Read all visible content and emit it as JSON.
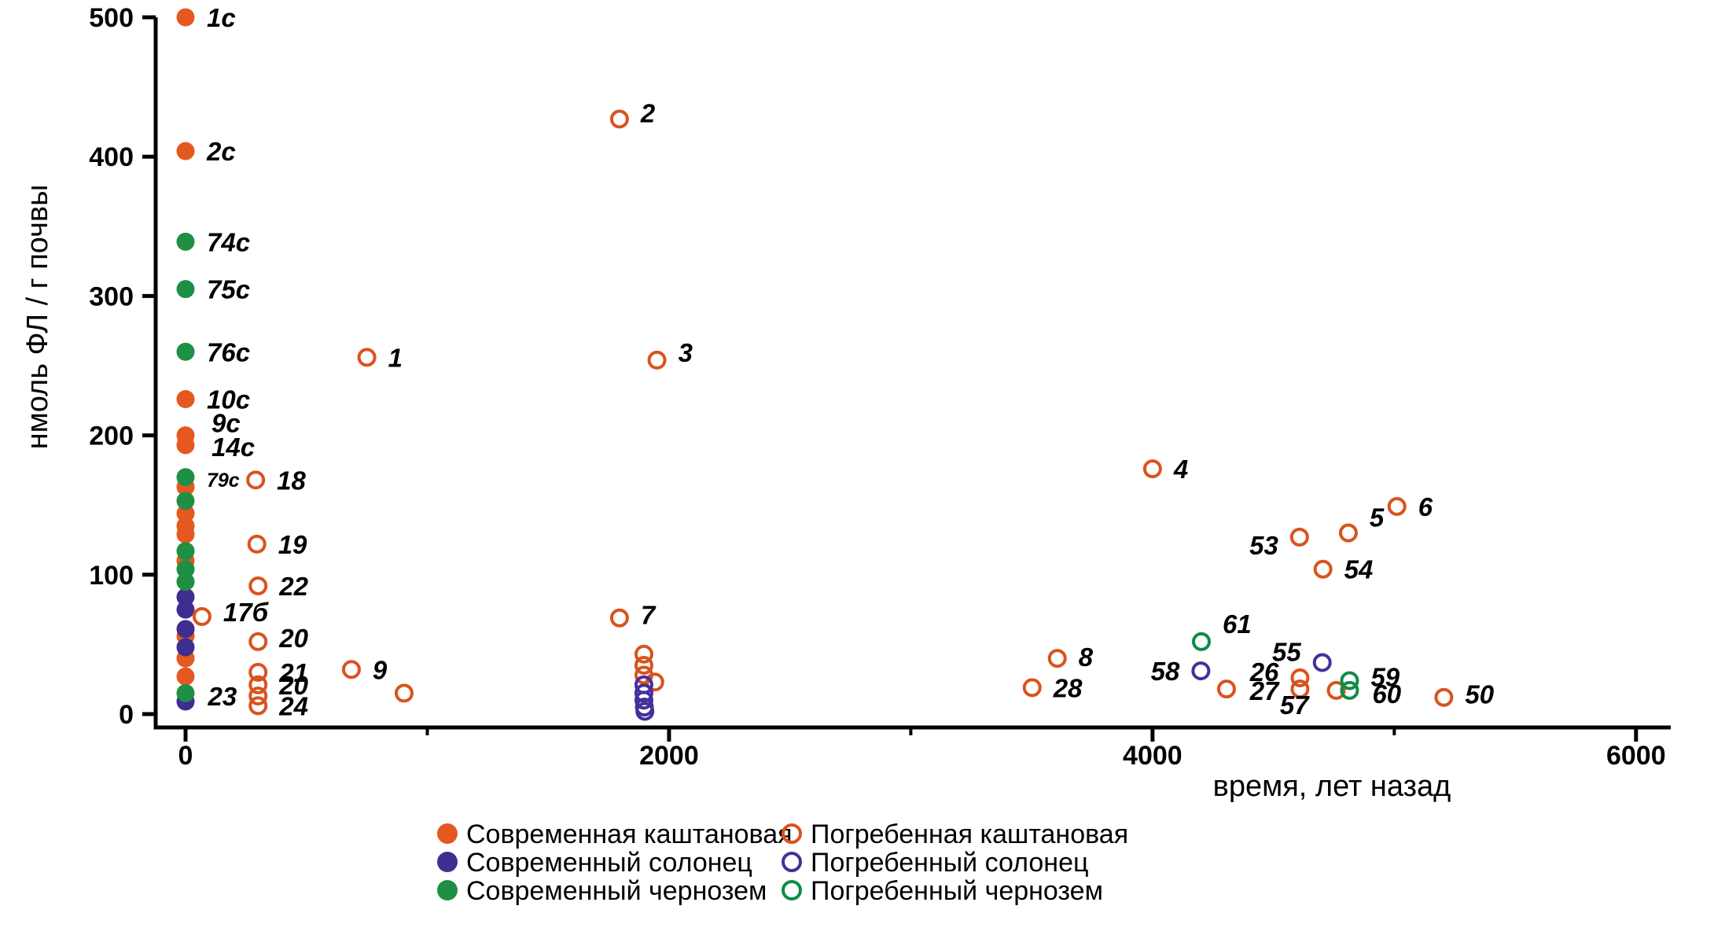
{
  "figure": {
    "background": "#ffffff"
  },
  "chart_data": {
    "type": "scatter",
    "title": "",
    "xlabel": "время, лет назад",
    "ylabel": "нмоль ФЛ / г почвы",
    "xlim": [
      -125,
      6145
    ],
    "ylim": [
      -10,
      500
    ],
    "grid": false,
    "legend_position": "bottom",
    "x_ticks": [
      0,
      2000,
      4000,
      6000
    ],
    "x_minor_ticks": [
      1000,
      3000,
      5000
    ],
    "y_ticks": [
      0,
      100,
      200,
      300,
      400,
      500
    ],
    "series": [
      {
        "key": "modern-kashtanovaya",
        "name": "Современная каштановая",
        "marker": "filled",
        "color": "#E5581F",
        "points": [
          {
            "x": 0,
            "y": 500,
            "label": "1с"
          },
          {
            "x": 0,
            "y": 404,
            "label": "2с"
          },
          {
            "x": 0,
            "y": 226,
            "label": "10с"
          },
          {
            "x": 0,
            "y": 200,
            "label": "9с",
            "ldx": 6,
            "ldy": -16
          },
          {
            "x": 0,
            "y": 193,
            "label": "14с",
            "ldx": 6,
            "ldy": 2
          },
          {
            "x": 0,
            "y": 163
          },
          {
            "x": 0,
            "y": 144
          },
          {
            "x": 0,
            "y": 135
          },
          {
            "x": 0,
            "y": 129
          },
          {
            "x": 0,
            "y": 110
          },
          {
            "x": 0,
            "y": 56
          },
          {
            "x": 0,
            "y": 40
          },
          {
            "x": 0,
            "y": 27
          }
        ]
      },
      {
        "key": "modern-solonets",
        "name": "Современный солонец",
        "marker": "filled",
        "color": "#3F2D91",
        "points": [
          {
            "x": 0,
            "y": 84
          },
          {
            "x": 0,
            "y": 75
          },
          {
            "x": 0,
            "y": 61
          },
          {
            "x": 0,
            "y": 48
          },
          {
            "x": 0,
            "y": 9
          }
        ]
      },
      {
        "key": "modern-chernozem",
        "name": "Современный чернозем",
        "marker": "filled",
        "color": "#1F8F44",
        "points": [
          {
            "x": 0,
            "y": 339,
            "label": "74с"
          },
          {
            "x": 0,
            "y": 305,
            "label": "75с"
          },
          {
            "x": 0,
            "y": 260,
            "label": "76с"
          },
          {
            "x": 0,
            "y": 170,
            "label": "79с",
            "lsize": 25
          },
          {
            "x": 0,
            "y": 153
          },
          {
            "x": 0,
            "y": 117
          },
          {
            "x": 0,
            "y": 104
          },
          {
            "x": 0,
            "y": 95
          },
          {
            "x": 0,
            "y": 15
          }
        ]
      },
      {
        "key": "buried-kashtanovaya",
        "name": "Погребенная каштановая",
        "marker": "open",
        "color": "#D9531E",
        "points": [
          {
            "x": 290,
            "y": 168,
            "label": "18"
          },
          {
            "x": 295,
            "y": 122,
            "label": "19"
          },
          {
            "x": 300,
            "y": 92,
            "label": "22"
          },
          {
            "x": 68,
            "y": 70,
            "label": "17б",
            "ldy": -6
          },
          {
            "x": 300,
            "y": 52,
            "label": "20",
            "ldy": -5
          },
          {
            "x": 300,
            "y": 30,
            "label": "21"
          },
          {
            "x": 300,
            "y": 21,
            "label": "20"
          },
          {
            "x": 300,
            "y": 13,
            "label": "23",
            "side": "left"
          },
          {
            "x": 300,
            "y": 6,
            "label": "24"
          },
          {
            "x": 750,
            "y": 256,
            "label": "1"
          },
          {
            "x": 686,
            "y": 32,
            "label": "9"
          },
          {
            "x": 904,
            "y": 15
          },
          {
            "x": 1795,
            "y": 427,
            "label": "2",
            "ldy": -8
          },
          {
            "x": 1950,
            "y": 254,
            "label": "3",
            "ldy": -10
          },
          {
            "x": 1795,
            "y": 69,
            "label": "7",
            "ldy": -4
          },
          {
            "x": 1896,
            "y": 43
          },
          {
            "x": 1896,
            "y": 35
          },
          {
            "x": 1896,
            "y": 28
          },
          {
            "x": 1941,
            "y": 23
          },
          {
            "x": 4000,
            "y": 176,
            "label": "4"
          },
          {
            "x": 4810,
            "y": 130,
            "label": "5",
            "ldy": -20
          },
          {
            "x": 5011,
            "y": 149,
            "label": "6"
          },
          {
            "x": 4608,
            "y": 127,
            "label": "53",
            "side": "left",
            "ldy": 10
          },
          {
            "x": 4705,
            "y": 104,
            "label": "54"
          },
          {
            "x": 3606,
            "y": 40,
            "label": "8",
            "ldy": -2
          },
          {
            "x": 3502,
            "y": 19,
            "label": "28"
          },
          {
            "x": 4306,
            "y": 18
          },
          {
            "x": 4610,
            "y": 26,
            "label": "26",
            "side": "left",
            "ldy": -8
          },
          {
            "x": 4610,
            "y": 18,
            "label": "27",
            "side": "left",
            "ldy": 2
          },
          {
            "x": 4760,
            "y": 17,
            "label": "57",
            "side": "left",
            "ldy": 18,
            "ldx": 8
          },
          {
            "x": 5205,
            "y": 12,
            "label": "50",
            "ldy": -4
          }
        ]
      },
      {
        "key": "buried-solonets",
        "name": "Погребенный солонец",
        "marker": "open",
        "color": "#43309B",
        "points": [
          {
            "x": 4200,
            "y": 31,
            "label": "58",
            "side": "left"
          },
          {
            "x": 4702,
            "y": 37,
            "label": "55",
            "side": "left",
            "ldy": -14
          },
          {
            "x": 1896,
            "y": 21
          },
          {
            "x": 1896,
            "y": 15
          },
          {
            "x": 1896,
            "y": 10
          },
          {
            "x": 1898,
            "y": 5
          },
          {
            "x": 1900,
            "y": 2
          }
        ]
      },
      {
        "key": "buried-chernozem",
        "name": "Погребенный чернозем",
        "marker": "open",
        "color": "#0F8C46",
        "points": [
          {
            "x": 4202,
            "y": 52,
            "label": "61",
            "ldy": -23
          },
          {
            "x": 4815,
            "y": 24,
            "label": "59",
            "ldy": -5
          },
          {
            "x": 4815,
            "y": 17,
            "label": "60",
            "ldy": 4,
            "ldx": 2
          }
        ]
      }
    ]
  },
  "legend": {
    "columns": [
      {
        "items": [
          {
            "label": "Современная каштановая",
            "marker": "filled",
            "color": "#E5581F"
          },
          {
            "label": "Современный солонец",
            "marker": "filled",
            "color": "#3F2D91"
          },
          {
            "label": "Современный чернозем",
            "marker": "filled",
            "color": "#1F8F44"
          }
        ]
      },
      {
        "items": [
          {
            "label": "Погребенная каштановая",
            "marker": "open",
            "color": "#D9531E"
          },
          {
            "label": "Погребенный солонец",
            "marker": "open",
            "color": "#43309B"
          },
          {
            "label": "Погребенный чернозем",
            "marker": "open",
            "color": "#0F8C46"
          }
        ]
      }
    ]
  }
}
